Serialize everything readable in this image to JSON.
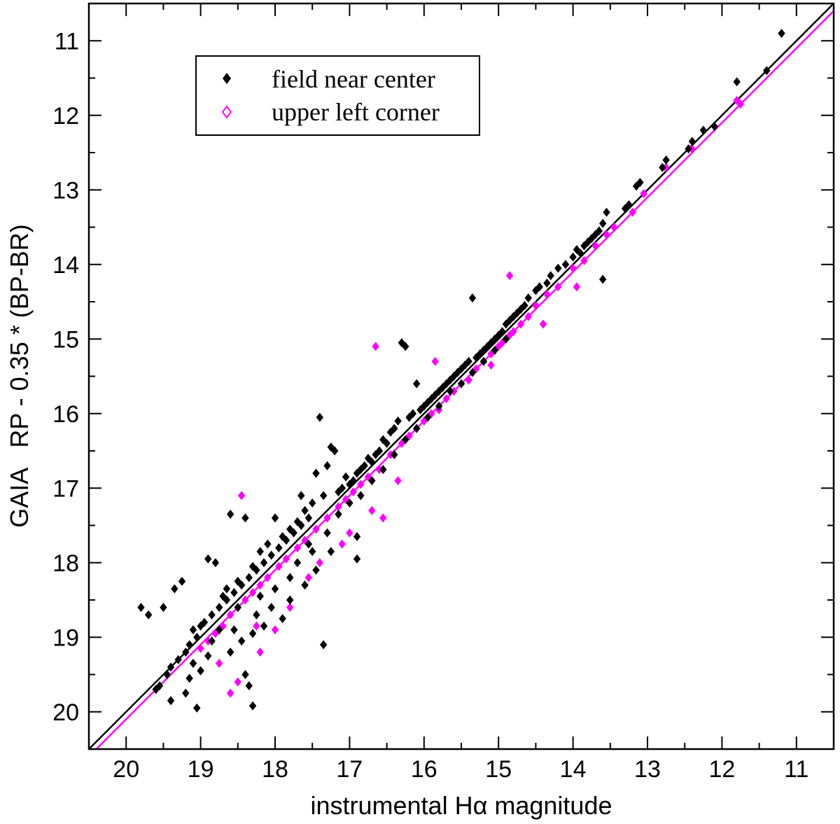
{
  "chart_data": {
    "type": "scatter",
    "title": "",
    "xlabel": "instrumental Hα magnitude",
    "ylabel": "GAIA   RP - 0.35 * (BP-BR)",
    "xlim": [
      20.5,
      10.5
    ],
    "ylim": [
      20.5,
      10.5
    ],
    "x_reversed": true,
    "y_reversed": true,
    "xticks": [
      20,
      19,
      18,
      17,
      16,
      15,
      14,
      13,
      12,
      11
    ],
    "yticks": [
      11,
      12,
      13,
      14,
      15,
      16,
      17,
      18,
      19,
      20
    ],
    "grid": false,
    "legend_position": "top-left",
    "series": [
      {
        "name": "field near center",
        "color": "#000000",
        "marker": "filled-diamond",
        "fit_line": {
          "slope": 1.0,
          "intercept": 0.0
        },
        "points": [
          [
            11.2,
            10.9
          ],
          [
            11.4,
            11.4
          ],
          [
            11.8,
            11.55
          ],
          [
            12.1,
            12.15
          ],
          [
            12.25,
            12.2
          ],
          [
            12.4,
            12.35
          ],
          [
            12.45,
            12.45
          ],
          [
            12.75,
            12.6
          ],
          [
            12.8,
            12.7
          ],
          [
            13.1,
            12.9
          ],
          [
            13.15,
            12.95
          ],
          [
            13.25,
            13.2
          ],
          [
            13.3,
            13.25
          ],
          [
            13.55,
            13.3
          ],
          [
            13.6,
            13.45
          ],
          [
            13.65,
            13.55
          ],
          [
            13.7,
            13.6
          ],
          [
            13.75,
            13.65
          ],
          [
            13.8,
            13.7
          ],
          [
            13.85,
            13.75
          ],
          [
            13.9,
            13.85
          ],
          [
            13.95,
            13.8
          ],
          [
            14.0,
            13.9
          ],
          [
            14.1,
            14.0
          ],
          [
            14.2,
            14.05
          ],
          [
            14.3,
            14.15
          ],
          [
            14.35,
            14.25
          ],
          [
            14.45,
            14.3
          ],
          [
            14.5,
            14.35
          ],
          [
            13.6,
            14.2
          ],
          [
            14.6,
            14.45
          ],
          [
            14.65,
            14.55
          ],
          [
            14.7,
            14.6
          ],
          [
            14.75,
            14.65
          ],
          [
            14.8,
            14.7
          ],
          [
            14.85,
            14.75
          ],
          [
            14.9,
            14.8
          ],
          [
            14.95,
            14.9
          ],
          [
            15.0,
            14.95
          ],
          [
            15.05,
            15.0
          ],
          [
            15.1,
            15.05
          ],
          [
            15.15,
            15.1
          ],
          [
            15.2,
            15.15
          ],
          [
            15.25,
            15.2
          ],
          [
            15.3,
            15.25
          ],
          [
            15.35,
            14.45
          ],
          [
            15.4,
            15.3
          ],
          [
            15.45,
            15.35
          ],
          [
            15.5,
            15.4
          ],
          [
            15.55,
            15.45
          ],
          [
            15.6,
            15.5
          ],
          [
            15.65,
            15.55
          ],
          [
            15.7,
            15.6
          ],
          [
            15.75,
            15.65
          ],
          [
            15.8,
            15.7
          ],
          [
            15.85,
            15.75
          ],
          [
            15.9,
            15.8
          ],
          [
            15.95,
            15.85
          ],
          [
            16.0,
            15.9
          ],
          [
            16.05,
            15.95
          ],
          [
            16.1,
            15.6
          ],
          [
            16.15,
            16.0
          ],
          [
            16.2,
            16.05
          ],
          [
            16.25,
            15.1
          ],
          [
            16.3,
            15.05
          ],
          [
            16.35,
            16.1
          ],
          [
            16.4,
            16.2
          ],
          [
            16.45,
            16.25
          ],
          [
            16.5,
            16.4
          ],
          [
            16.55,
            16.35
          ],
          [
            16.6,
            16.5
          ],
          [
            16.65,
            16.55
          ],
          [
            16.7,
            16.65
          ],
          [
            16.75,
            16.6
          ],
          [
            16.8,
            16.7
          ],
          [
            16.85,
            16.75
          ],
          [
            16.9,
            16.8
          ],
          [
            16.95,
            16.9
          ],
          [
            17.0,
            16.95
          ],
          [
            17.05,
            16.85
          ],
          [
            17.1,
            17.0
          ],
          [
            17.15,
            17.05
          ],
          [
            17.2,
            16.5
          ],
          [
            17.25,
            16.45
          ],
          [
            17.3,
            16.7
          ],
          [
            17.35,
            17.1
          ],
          [
            17.4,
            16.05
          ],
          [
            17.45,
            16.8
          ],
          [
            17.5,
            17.2
          ],
          [
            17.55,
            17.4
          ],
          [
            17.6,
            17.3
          ],
          [
            17.65,
            17.5
          ],
          [
            17.7,
            17.45
          ],
          [
            17.75,
            17.6
          ],
          [
            17.8,
            17.55
          ],
          [
            17.85,
            17.7
          ],
          [
            17.9,
            17.65
          ],
          [
            17.95,
            17.8
          ],
          [
            18.0,
            17.4
          ],
          [
            18.05,
            17.9
          ],
          [
            18.1,
            17.75
          ],
          [
            18.15,
            18.0
          ],
          [
            18.2,
            17.85
          ],
          [
            18.25,
            18.1
          ],
          [
            18.3,
            18.05
          ],
          [
            18.35,
            18.2
          ],
          [
            18.4,
            17.4
          ],
          [
            18.45,
            18.3
          ],
          [
            18.5,
            18.25
          ],
          [
            18.55,
            18.4
          ],
          [
            18.6,
            17.35
          ],
          [
            18.65,
            18.5
          ],
          [
            18.7,
            18.45
          ],
          [
            18.75,
            18.6
          ],
          [
            18.8,
            18.0
          ],
          [
            18.85,
            18.7
          ],
          [
            18.9,
            17.95
          ],
          [
            18.95,
            18.8
          ],
          [
            19.0,
            18.85
          ],
          [
            19.05,
            19.0
          ],
          [
            19.1,
            18.9
          ],
          [
            19.15,
            19.1
          ],
          [
            19.2,
            19.2
          ],
          [
            19.25,
            18.25
          ],
          [
            19.3,
            19.3
          ],
          [
            19.35,
            18.35
          ],
          [
            19.4,
            19.4
          ],
          [
            19.45,
            19.5
          ],
          [
            19.5,
            18.6
          ],
          [
            19.55,
            19.65
          ],
          [
            19.6,
            19.7
          ],
          [
            19.7,
            18.7
          ],
          [
            19.8,
            18.6
          ],
          [
            19.4,
            19.85
          ],
          [
            19.05,
            19.95
          ],
          [
            19.2,
            19.75
          ],
          [
            18.3,
            19.92
          ],
          [
            17.35,
            19.1
          ],
          [
            16.9,
            17.95
          ],
          [
            16.9,
            17.65
          ],
          [
            17.65,
            17.1
          ],
          [
            17.8,
            18.2
          ],
          [
            18.05,
            18.6
          ],
          [
            18.55,
            18.9
          ],
          [
            18.6,
            19.2
          ],
          [
            18.4,
            19.5
          ],
          [
            18.35,
            19.65
          ],
          [
            18.75,
            18.9
          ],
          [
            18.9,
            19.25
          ],
          [
            19.1,
            19.35
          ],
          [
            18.2,
            18.45
          ],
          [
            18.0,
            18.35
          ],
          [
            17.7,
            18.0
          ],
          [
            17.5,
            17.85
          ],
          [
            17.3,
            17.6
          ],
          [
            17.15,
            17.35
          ],
          [
            17.0,
            17.2
          ],
          [
            16.85,
            17.1
          ],
          [
            16.7,
            16.9
          ],
          [
            16.55,
            16.75
          ],
          [
            16.4,
            16.55
          ],
          [
            16.25,
            16.35
          ],
          [
            16.1,
            16.2
          ],
          [
            15.95,
            16.05
          ],
          [
            15.8,
            15.9
          ],
          [
            15.65,
            15.7
          ],
          [
            15.5,
            15.6
          ],
          [
            15.35,
            15.45
          ],
          [
            15.2,
            15.3
          ],
          [
            15.05,
            15.15
          ],
          [
            14.9,
            15.0
          ],
          [
            17.8,
            18.5
          ],
          [
            17.9,
            18.75
          ],
          [
            18.15,
            18.85
          ],
          [
            18.3,
            18.95
          ],
          [
            18.45,
            19.05
          ],
          [
            17.6,
            18.3
          ],
          [
            17.45,
            18.1
          ],
          [
            17.25,
            17.85
          ],
          [
            17.55,
            17.75
          ],
          [
            18.25,
            18.7
          ],
          [
            18.5,
            18.6
          ],
          [
            18.65,
            18.35
          ],
          [
            18.85,
            19.05
          ],
          [
            19.0,
            19.45
          ],
          [
            19.15,
            19.55
          ]
        ]
      },
      {
        "name": "upper left corner",
        "color": "#ff00ff",
        "marker": "filled-diamond",
        "fit_line": {
          "slope": 1.0,
          "intercept": 0.1
        },
        "points": [
          [
            11.75,
            11.85
          ],
          [
            11.8,
            11.8
          ],
          [
            12.4,
            12.45
          ],
          [
            12.75,
            12.7
          ],
          [
            13.05,
            13.05
          ],
          [
            13.2,
            13.3
          ],
          [
            13.45,
            13.5
          ],
          [
            13.55,
            13.6
          ],
          [
            13.7,
            13.75
          ],
          [
            13.85,
            13.95
          ],
          [
            14.0,
            14.05
          ],
          [
            14.2,
            14.3
          ],
          [
            14.35,
            14.4
          ],
          [
            14.5,
            14.55
          ],
          [
            14.6,
            14.7
          ],
          [
            14.7,
            14.8
          ],
          [
            14.8,
            14.9
          ],
          [
            14.85,
            14.95
          ],
          [
            14.9,
            15.0
          ],
          [
            14.95,
            15.05
          ],
          [
            15.0,
            15.1
          ],
          [
            14.85,
            14.15
          ],
          [
            15.1,
            15.2
          ],
          [
            15.2,
            15.3
          ],
          [
            15.3,
            15.4
          ],
          [
            15.4,
            15.55
          ],
          [
            15.5,
            15.6
          ],
          [
            15.6,
            15.7
          ],
          [
            15.7,
            15.8
          ],
          [
            15.8,
            15.95
          ],
          [
            15.85,
            15.3
          ],
          [
            15.9,
            16.0
          ],
          [
            16.0,
            16.1
          ],
          [
            16.1,
            16.2
          ],
          [
            16.2,
            16.3
          ],
          [
            16.3,
            16.4
          ],
          [
            16.45,
            16.55
          ],
          [
            16.6,
            16.75
          ],
          [
            16.65,
            15.1
          ],
          [
            16.75,
            16.85
          ],
          [
            16.85,
            16.95
          ],
          [
            16.95,
            17.05
          ],
          [
            17.05,
            17.15
          ],
          [
            17.15,
            17.25
          ],
          [
            17.3,
            17.4
          ],
          [
            17.45,
            17.55
          ],
          [
            17.6,
            17.7
          ],
          [
            17.7,
            17.8
          ],
          [
            17.85,
            17.95
          ],
          [
            17.95,
            18.05
          ],
          [
            18.1,
            18.2
          ],
          [
            18.2,
            18.3
          ],
          [
            18.3,
            18.4
          ],
          [
            18.4,
            18.5
          ],
          [
            18.5,
            18.6
          ],
          [
            18.6,
            18.7
          ],
          [
            18.7,
            18.85
          ],
          [
            18.8,
            18.95
          ],
          [
            18.9,
            19.05
          ],
          [
            19.0,
            19.15
          ],
          [
            18.45,
            17.1
          ],
          [
            17.45,
            16.8
          ],
          [
            16.35,
            16.9
          ],
          [
            16.7,
            17.3
          ],
          [
            17.0,
            17.6
          ],
          [
            17.4,
            18.0
          ],
          [
            17.55,
            18.2
          ],
          [
            18.6,
            19.75
          ],
          [
            18.5,
            19.6
          ],
          [
            18.75,
            19.35
          ],
          [
            18.2,
            19.2
          ],
          [
            19.1,
            19.35
          ],
          [
            19.0,
            19.45
          ],
          [
            19.6,
            19.7
          ],
          [
            17.8,
            18.6
          ],
          [
            18.0,
            18.9
          ],
          [
            18.25,
            18.85
          ],
          [
            17.1,
            17.75
          ],
          [
            16.55,
            17.4
          ],
          [
            15.1,
            15.35
          ],
          [
            14.4,
            14.8
          ],
          [
            13.95,
            14.3
          ]
        ]
      }
    ]
  }
}
